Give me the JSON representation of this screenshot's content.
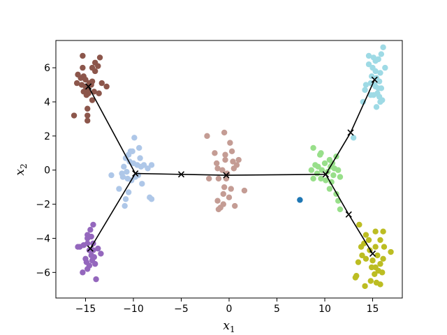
{
  "chart_data": {
    "type": "scatter",
    "title": "",
    "xlabel": "x",
    "xlabel_sub": "1",
    "ylabel": "x",
    "ylabel_sub": "2",
    "xlim": [
      -18.1,
      18.1
    ],
    "ylim": [
      -7.5,
      7.6
    ],
    "xticks": [
      -15,
      -10,
      -5,
      0,
      5,
      10,
      15
    ],
    "yticks": [
      -6,
      -4,
      -2,
      0,
      2,
      4,
      6
    ],
    "grid": false,
    "clusters": [
      {
        "color": "#8c564b",
        "points": [
          [
            -15.8,
            5.6
          ],
          [
            -15.5,
            5.4
          ],
          [
            -15.2,
            5.5
          ],
          [
            -15.4,
            5.0
          ],
          [
            -15.0,
            4.9
          ],
          [
            -14.8,
            4.7
          ],
          [
            -14.6,
            5.1
          ],
          [
            -14.3,
            5.2
          ],
          [
            -14.0,
            5.8
          ],
          [
            -13.7,
            6.1
          ],
          [
            -13.5,
            6.6
          ],
          [
            -14.3,
            6.0
          ],
          [
            -15.3,
            6.0
          ],
          [
            -15.0,
            5.3
          ],
          [
            -14.7,
            4.5
          ],
          [
            -14.1,
            4.6
          ],
          [
            -13.6,
            4.5
          ],
          [
            -13.3,
            5.1
          ],
          [
            -12.8,
            4.9
          ],
          [
            -14.3,
            4.1
          ],
          [
            -14.9,
            4.4
          ],
          [
            -15.2,
            4.6
          ],
          [
            -14.8,
            3.6
          ],
          [
            -14.8,
            3.2
          ],
          [
            -14.8,
            2.9
          ],
          [
            -16.2,
            3.2
          ],
          [
            -15.3,
            6.7
          ],
          [
            -14.0,
            6.3
          ],
          [
            -15.9,
            5.1
          ],
          [
            -14.4,
            5.0
          ]
        ]
      },
      {
        "color": "#aec7e8",
        "points": [
          [
            -9.9,
            1.9
          ],
          [
            -9.4,
            1.3
          ],
          [
            -10.1,
            1.1
          ],
          [
            -10.3,
            1.1
          ],
          [
            -10.5,
            0.9
          ],
          [
            -10.8,
            0.7
          ],
          [
            -10.4,
            0.5
          ],
          [
            -10.0,
            0.4
          ],
          [
            -9.6,
            0.3
          ],
          [
            -9.2,
            0.2
          ],
          [
            -8.9,
            0.3
          ],
          [
            -8.5,
            0.1
          ],
          [
            -8.1,
            0.3
          ],
          [
            -10.7,
            -0.1
          ],
          [
            -11.2,
            -0.2
          ],
          [
            -12.3,
            -0.3
          ],
          [
            -11.1,
            -0.4
          ],
          [
            -10.6,
            -0.5
          ],
          [
            -10.2,
            -0.6
          ],
          [
            -9.8,
            -0.4
          ],
          [
            -9.5,
            -0.3
          ],
          [
            -9.1,
            -0.8
          ],
          [
            -11.5,
            -1.1
          ],
          [
            -10.5,
            -1.3
          ],
          [
            -10.8,
            -1.7
          ],
          [
            -10.9,
            -2.1
          ],
          [
            -8.3,
            -1.6
          ],
          [
            -8.1,
            -1.7
          ],
          [
            -9.3,
            0.7
          ],
          [
            -11.0,
            0.2
          ]
        ]
      },
      {
        "color": "#c49c94",
        "points": [
          [
            -2.3,
            2.0
          ],
          [
            -0.5,
            2.2
          ],
          [
            0.1,
            1.6
          ],
          [
            -1.5,
            1.0
          ],
          [
            -0.4,
            0.6
          ],
          [
            0.4,
            0.5
          ],
          [
            1.0,
            0.6
          ],
          [
            0.8,
            0.3
          ],
          [
            0.5,
            0.1
          ],
          [
            -1.2,
            0.1
          ],
          [
            -0.7,
            0.0
          ],
          [
            -0.2,
            -0.2
          ],
          [
            -2.1,
            -0.5
          ],
          [
            -1.1,
            -0.5
          ],
          [
            -0.3,
            -0.5
          ],
          [
            -0.5,
            -1.0
          ],
          [
            0.2,
            -1.1
          ],
          [
            1.6,
            -1.2
          ],
          [
            -0.6,
            -1.4
          ],
          [
            -1.2,
            -1.8
          ],
          [
            -0.6,
            -2.0
          ],
          [
            -0.9,
            -2.2
          ],
          [
            -1.1,
            -2.3
          ],
          [
            0.6,
            -2.1
          ],
          [
            0.0,
            -1.6
          ],
          [
            -0.4,
            0.9
          ],
          [
            0.3,
            1.1
          ],
          [
            -1.3,
            0.4
          ]
        ]
      },
      {
        "color": "#98df8a",
        "points": [
          [
            8.8,
            1.3
          ],
          [
            9.6,
            1.0
          ],
          [
            9.5,
            0.9
          ],
          [
            10.5,
            0.6
          ],
          [
            11.2,
            0.8
          ],
          [
            10.0,
            0.4
          ],
          [
            10.6,
            0.2
          ],
          [
            11.0,
            0.1
          ],
          [
            11.4,
            0.0
          ],
          [
            11.6,
            -0.4
          ],
          [
            9.0,
            0.3
          ],
          [
            8.6,
            0.0
          ],
          [
            9.3,
            0.2
          ],
          [
            9.7,
            0.0
          ],
          [
            10.3,
            -0.1
          ],
          [
            10.9,
            -0.3
          ],
          [
            8.8,
            -0.5
          ],
          [
            9.6,
            -0.5
          ],
          [
            10.1,
            -0.6
          ],
          [
            10.7,
            -0.7
          ],
          [
            10.5,
            -1.1
          ],
          [
            11.2,
            -1.4
          ],
          [
            11.4,
            -1.8
          ],
          [
            11.6,
            -2.3
          ],
          [
            9.2,
            -0.2
          ],
          [
            10.8,
            0.4
          ]
        ]
      },
      {
        "color": "#1f77b4",
        "points": [
          [
            7.4,
            -1.75
          ]
        ]
      },
      {
        "color": "#9edae5",
        "points": [
          [
            14.6,
            6.7
          ],
          [
            15.1,
            6.6
          ],
          [
            15.3,
            6.4
          ],
          [
            15.6,
            6.5
          ],
          [
            16.1,
            7.2
          ],
          [
            15.9,
            6.8
          ],
          [
            14.6,
            6.2
          ],
          [
            15.0,
            6.0
          ],
          [
            15.3,
            5.8
          ],
          [
            15.8,
            5.7
          ],
          [
            16.3,
            6.0
          ],
          [
            14.9,
            5.5
          ],
          [
            15.4,
            5.4
          ],
          [
            15.7,
            5.2
          ],
          [
            14.8,
            5.1
          ],
          [
            15.3,
            4.9
          ],
          [
            15.6,
            4.8
          ],
          [
            15.9,
            4.8
          ],
          [
            15.5,
            4.5
          ],
          [
            15.1,
            4.4
          ],
          [
            15.7,
            4.3
          ],
          [
            16.0,
            4.1
          ],
          [
            15.8,
            4.0
          ],
          [
            14.8,
            4.4
          ],
          [
            14.3,
            5.0
          ],
          [
            14.2,
            4.7
          ],
          [
            14.0,
            4.0
          ],
          [
            15.4,
            3.7
          ],
          [
            13.0,
            1.9
          ],
          [
            15.2,
            5.0
          ]
        ]
      },
      {
        "color": "#bcbd22",
        "points": [
          [
            13.6,
            -3.2
          ],
          [
            14.3,
            -3.8
          ],
          [
            14.1,
            -4.3
          ],
          [
            13.8,
            -4.5
          ],
          [
            13.9,
            -5.0
          ],
          [
            14.3,
            -5.2
          ],
          [
            15.3,
            -3.6
          ],
          [
            16.1,
            -3.6
          ],
          [
            15.8,
            -4.1
          ],
          [
            15.3,
            -4.5
          ],
          [
            16.2,
            -4.5
          ],
          [
            15.5,
            -5.0
          ],
          [
            16.1,
            -5.2
          ],
          [
            15.8,
            -5.5
          ],
          [
            15.6,
            -5.9
          ],
          [
            15.3,
            -5.7
          ],
          [
            14.9,
            -5.7
          ],
          [
            15.2,
            -6.1
          ],
          [
            14.8,
            -6.5
          ],
          [
            15.4,
            -6.6
          ],
          [
            15.8,
            -6.7
          ],
          [
            14.2,
            -6.8
          ],
          [
            13.3,
            -6.2
          ],
          [
            13.2,
            -6.3
          ],
          [
            16.9,
            -4.8
          ],
          [
            13.5,
            -5.4
          ],
          [
            14.6,
            -4.1
          ],
          [
            14.7,
            -4.7
          ],
          [
            15.0,
            -5.3
          ],
          [
            16.0,
            -6.0
          ]
        ]
      },
      {
        "color": "#9467bd",
        "points": [
          [
            -14.2,
            -3.2
          ],
          [
            -14.8,
            -3.8
          ],
          [
            -14.4,
            -3.9
          ],
          [
            -14.8,
            -4.0
          ],
          [
            -14.2,
            -4.3
          ],
          [
            -15.6,
            -4.5
          ],
          [
            -15.2,
            -4.4
          ],
          [
            -14.8,
            -4.3
          ],
          [
            -13.7,
            -4.6
          ],
          [
            -14.2,
            -4.7
          ],
          [
            -14.4,
            -5.0
          ],
          [
            -13.4,
            -4.9
          ],
          [
            -15.0,
            -5.2
          ],
          [
            -14.9,
            -5.4
          ],
          [
            -14.6,
            -5.6
          ],
          [
            -14.8,
            -5.8
          ],
          [
            -14.3,
            -5.3
          ],
          [
            -14.0,
            -5.5
          ],
          [
            -15.3,
            -6.0
          ],
          [
            -13.9,
            -6.4
          ],
          [
            -15.8,
            -4.5
          ],
          [
            -14.6,
            -4.7
          ],
          [
            -14.1,
            -5.1
          ],
          [
            -14.5,
            -3.5
          ]
        ]
      }
    ],
    "path_line": {
      "color": "#000000",
      "segments": [
        [
          [
            -14.7,
            4.9
          ],
          [
            -9.8,
            -0.2
          ],
          [
            -14.5,
            -4.6
          ]
        ],
        [
          [
            -9.8,
            -0.2
          ],
          [
            -5.0,
            -0.25
          ],
          [
            -0.3,
            -0.3
          ],
          [
            10.1,
            -0.25
          ],
          [
            12.7,
            2.2
          ],
          [
            15.2,
            5.3
          ]
        ],
        [
          [
            10.1,
            -0.25
          ],
          [
            12.5,
            -2.6
          ],
          [
            15.0,
            -4.9
          ]
        ]
      ]
    },
    "markers": {
      "symbol": "x",
      "color": "#000000",
      "points": [
        [
          -14.7,
          4.9
        ],
        [
          -9.8,
          -0.2
        ],
        [
          -14.5,
          -4.6
        ],
        [
          -5.0,
          -0.25
        ],
        [
          -0.3,
          -0.3
        ],
        [
          10.1,
          -0.25
        ],
        [
          12.7,
          2.2
        ],
        [
          15.2,
          5.3
        ],
        [
          12.5,
          -2.6
        ],
        [
          15.0,
          -4.9
        ]
      ]
    }
  }
}
